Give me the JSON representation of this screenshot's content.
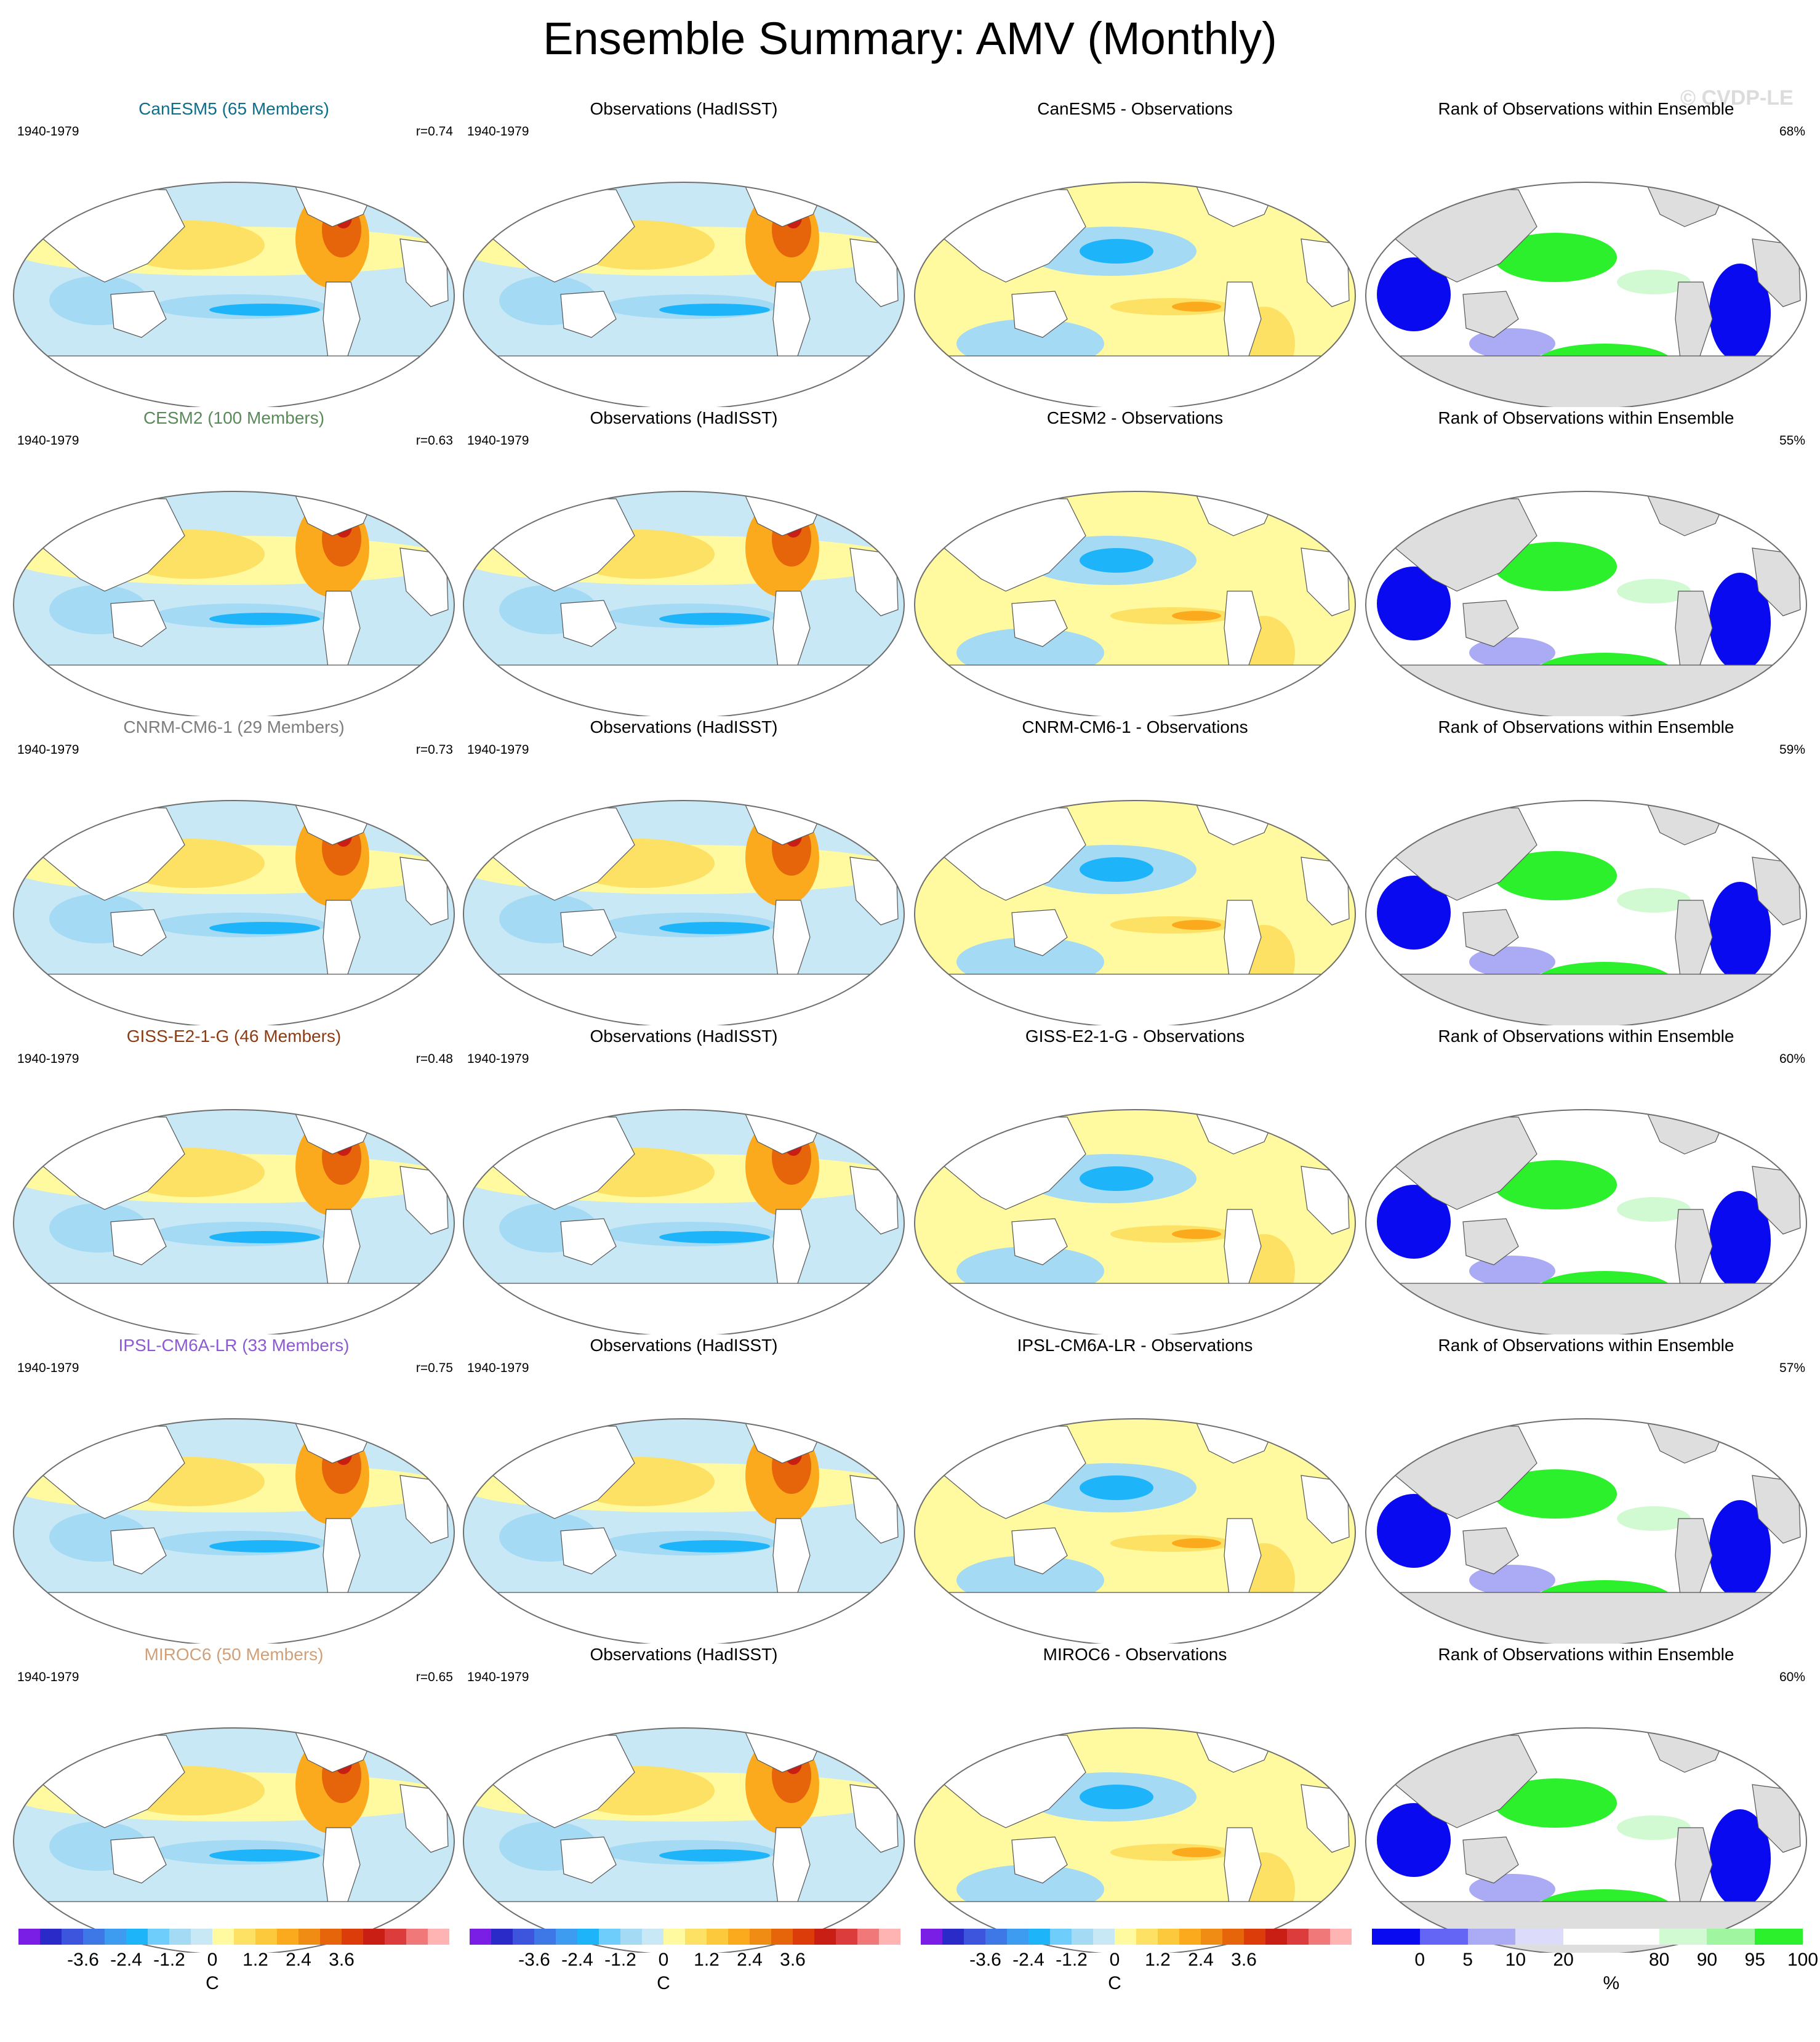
{
  "title": "Ensemble Summary: AMV (Monthly)",
  "watermark": "© CVDP-LE",
  "colors": {
    "anomaly_scale": [
      "#7a1ee6",
      "#2a2ac8",
      "#3c55dc",
      "#3d78e6",
      "#3d9bf0",
      "#1eb4fa",
      "#6ecdfa",
      "#a5daf5",
      "#c8e8f5",
      "#fffaa0",
      "#fde164",
      "#fcc83c",
      "#fbaa1e",
      "#f08c14",
      "#e6640a",
      "#dc3c0a",
      "#c81e14",
      "#dc3c3c",
      "#f07878",
      "#ffb4b4"
    ],
    "rank_scale": [
      "#0a0af0",
      "#6464f5",
      "#aaaaf5",
      "#dcdcfa",
      "#ffffff",
      "#ffffff",
      "#d2fad2",
      "#a0f5a0",
      "#2cf02c"
    ],
    "land_white": "#ffffff",
    "land_gray": "#dedede"
  },
  "rows": [
    {
      "model": "CanESM5 (65 Members)",
      "model_color": "#0f6e8c",
      "period": "1940-1979",
      "r": "r=0.74",
      "obs_title": "Observations (HadISST)",
      "diff_title": "CanESM5 - Observations",
      "rank_title": "Rank of Observations within Ensemble",
      "rank_pct": "68%"
    },
    {
      "model": "CESM2 (100 Members)",
      "model_color": "#5a8a5a",
      "period": "1940-1979",
      "r": "r=0.63",
      "obs_title": "Observations (HadISST)",
      "diff_title": "CESM2 - Observations",
      "rank_title": "Rank of Observations within Ensemble",
      "rank_pct": "55%"
    },
    {
      "model": "CNRM-CM6-1 (29 Members)",
      "model_color": "#7d7d7d",
      "period": "1940-1979",
      "r": "r=0.73",
      "obs_title": "Observations (HadISST)",
      "diff_title": "CNRM-CM6-1 - Observations",
      "rank_title": "Rank of Observations within Ensemble",
      "rank_pct": "59%"
    },
    {
      "model": "GISS-E2-1-G (46 Members)",
      "model_color": "#8c3c14",
      "period": "1940-1979",
      "r": "r=0.48",
      "obs_title": "Observations (HadISST)",
      "diff_title": "GISS-E2-1-G - Observations",
      "rank_title": "Rank of Observations within Ensemble",
      "rank_pct": "60%"
    },
    {
      "model": "IPSL-CM6A-LR (33 Members)",
      "model_color": "#8c5ad2",
      "period": "1940-1979",
      "r": "r=0.75",
      "obs_title": "Observations (HadISST)",
      "diff_title": "IPSL-CM6A-LR - Observations",
      "rank_title": "Rank of Observations within Ensemble",
      "rank_pct": "57%"
    },
    {
      "model": "MIROC6 (50 Members)",
      "model_color": "#d2a078",
      "period": "1940-1979",
      "r": "r=0.65",
      "obs_title": "Observations (HadISST)",
      "diff_title": "MIROC6 - Observations",
      "rank_title": "Rank of Observations within Ensemble",
      "rank_pct": "60%"
    }
  ],
  "chart_data": {
    "type": "heatmap",
    "projection": "robinson-global",
    "panels_per_row": [
      "model ensemble mean AMV pattern",
      "observations (HadISST)",
      "model minus observations",
      "rank of observations within ensemble"
    ],
    "colorbars": [
      {
        "labels": [
          "-3.6",
          "-2.4",
          "-1.2",
          "0",
          "1.2",
          "2.4",
          "3.6"
        ],
        "unit": "C"
      },
      {
        "labels": [
          "-3.6",
          "-2.4",
          "-1.2",
          "0",
          "1.2",
          "2.4",
          "3.6"
        ],
        "unit": "C"
      },
      {
        "labels": [
          "-3.6",
          "-2.4",
          "-1.2",
          "0",
          "1.2",
          "2.4",
          "3.6"
        ],
        "unit": "C"
      },
      {
        "labels": [
          "0",
          "5",
          "10",
          "20",
          "80",
          "90",
          "95",
          "100"
        ],
        "unit": "%"
      }
    ]
  }
}
